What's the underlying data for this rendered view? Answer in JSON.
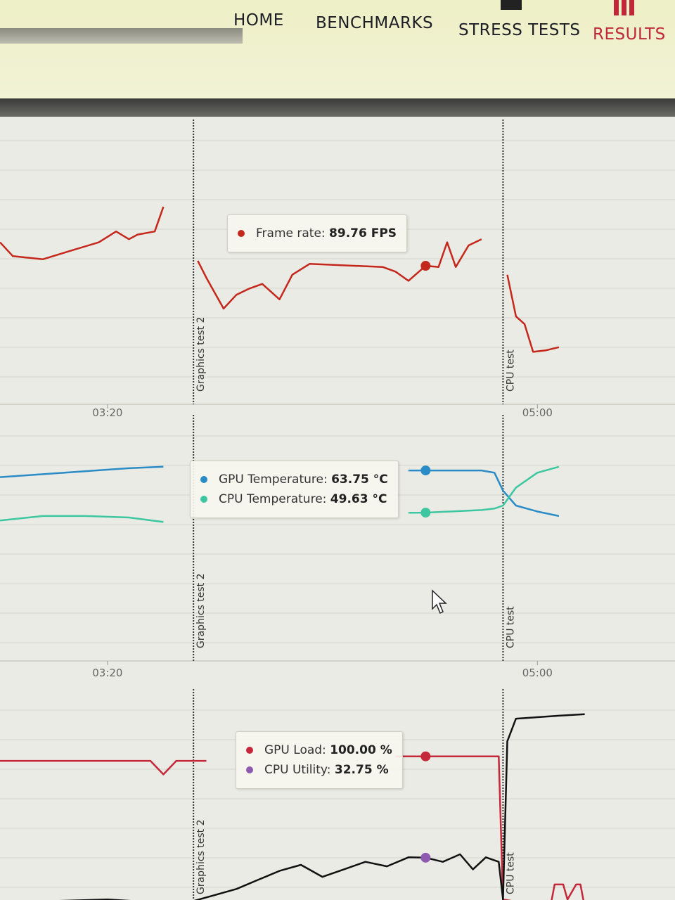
{
  "nav": [
    "HOME",
    "BENCHMARKS",
    "STRESS TESTS",
    "RESULTS"
  ],
  "charts": [
    {
      "type": "line",
      "xlim": [
        175,
        332
      ],
      "ylim": [
        0,
        180
      ],
      "xticks": [
        {
          "value": 200,
          "label": "03:20"
        },
        {
          "value": 300,
          "label": "05:00"
        }
      ],
      "markers": [
        {
          "label": "Graphics test 2",
          "x": 220
        },
        {
          "label": "CPU test",
          "x": 292
        }
      ],
      "hover": {
        "x": 274
      },
      "series": [
        {
          "name": "Frame rate:",
          "value_label": "89.76 FPS",
          "color": "#c4281c",
          "x": [
            175,
            178,
            185,
            192,
            198,
            202,
            205,
            207,
            211,
            213,
            219,
            221,
            223,
            227,
            230,
            233,
            236,
            240,
            243,
            247,
            264,
            267,
            270,
            274,
            277,
            279,
            281,
            284,
            287,
            290,
            293,
            295,
            297,
            299,
            302,
            305
          ],
          "values": [
            105,
            96,
            94,
            100,
            105,
            112,
            107,
            110,
            112,
            128,
            null,
            93,
            82,
            62,
            71,
            75,
            78,
            68,
            84,
            91,
            89,
            86,
            80,
            89.76,
            89,
            105,
            89,
            103,
            107,
            null,
            84,
            57,
            52,
            34,
            35,
            37
          ]
        }
      ]
    },
    {
      "type": "line",
      "xlim": [
        175,
        332
      ],
      "ylim": [
        0,
        80
      ],
      "xticks": [
        {
          "value": 200,
          "label": "03:20"
        },
        {
          "value": 300,
          "label": "05:00"
        }
      ],
      "markers": [
        {
          "label": "Graphics test 2",
          "x": 220
        },
        {
          "label": "CPU test",
          "x": 292
        }
      ],
      "hover": {
        "x": 274
      },
      "series": [
        {
          "name": "GPU Temperature:",
          "value_label": "63.75 °C",
          "color": "#2a8cc6",
          "x": [
            175,
            185,
            195,
            205,
            213,
            219,
            270,
            274,
            287,
            290,
            292,
            295,
            300,
            305
          ],
          "values": [
            61.5,
            62.5,
            63.5,
            64.5,
            65,
            null,
            63.75,
            63.75,
            63.75,
            63,
            57,
            52,
            50,
            48.5
          ]
        },
        {
          "name": "CPU Temperature:",
          "value_label": "49.63 °C",
          "color": "#3cc7a0",
          "x": [
            175,
            185,
            195,
            205,
            213,
            219,
            270,
            274,
            287,
            290,
            292,
            295,
            300,
            305
          ],
          "values": [
            47,
            48.5,
            48.5,
            48,
            46.5,
            null,
            49.6,
            49.63,
            50.5,
            51,
            52,
            58,
            63,
            65
          ]
        }
      ]
    },
    {
      "type": "line",
      "xlim": [
        175,
        332
      ],
      "ylim": [
        0,
        140
      ],
      "markers": [
        {
          "label": "Graphics test 2",
          "x": 220
        },
        {
          "label": "CPU test",
          "x": 292
        }
      ],
      "hover": {
        "x": 274
      },
      "series": [
        {
          "name": "GPU Load:",
          "value_label": "100.00 %",
          "color": "#c4283a",
          "x": [
            175,
            190,
            210,
            213,
            216,
            223,
            230,
            267,
            274,
            285,
            291,
            292,
            303,
            304,
            306,
            307,
            309,
            310,
            311
          ],
          "values": [
            97,
            97,
            97,
            88,
            97,
            97,
            null,
            100,
            100,
            100,
            100,
            5,
            0,
            15,
            15,
            5,
            15,
            15,
            0
          ]
        },
        {
          "name": "CPU Utility:",
          "value_label": "32.75 %",
          "color": "#111111",
          "marker_color": "#8e5ab0",
          "x": [
            175,
            200,
            212,
            220,
            225,
            230,
            235,
            240,
            245,
            250,
            255,
            260,
            265,
            270,
            274,
            278,
            282,
            285,
            288,
            291,
            292,
            293,
            295,
            300,
            305,
            311
          ],
          "values": [
            3,
            5,
            3,
            4,
            8,
            12,
            18,
            24,
            28,
            20,
            25,
            30,
            27,
            33,
            32.75,
            30,
            35,
            25,
            33,
            30,
            5,
            110,
            125,
            126,
            127,
            128
          ]
        }
      ]
    }
  ]
}
